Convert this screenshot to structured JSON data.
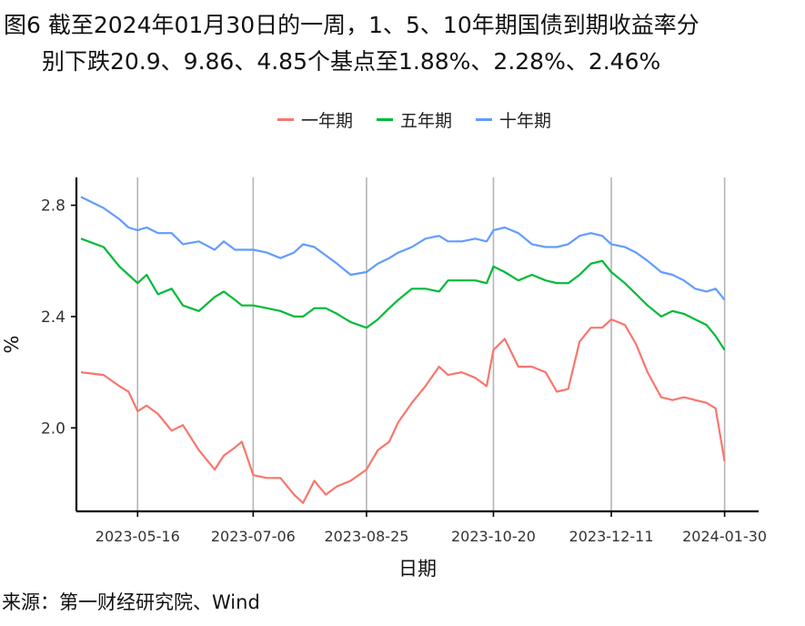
{
  "title": {
    "line1": "图6  截至2024年01月30日的一周，1、5、10年期国债到期收益率分",
    "line2": "别下跌20.9、9.86、4.85个基点至1.88%、2.28%、2.46%"
  },
  "source": "来源：第一财经研究院、Wind",
  "chart_data": {
    "type": "line",
    "xlabel": "日期",
    "ylabel": "%",
    "x_range": [
      "2023-04-19",
      "2024-02-14"
    ],
    "ylim": [
      1.7,
      2.9
    ],
    "yticks": [
      2.0,
      2.4,
      2.8
    ],
    "ytick_labels": [
      "2.0",
      "2.4",
      "2.8"
    ],
    "xticks": [
      "2023-05-16",
      "2023-07-06",
      "2023-08-25",
      "2023-10-20",
      "2023-12-11",
      "2024-01-30"
    ],
    "grid": "vertical lines at x ticks",
    "legend_position": "top",
    "series": [
      {
        "name": "一年期",
        "color": "#F8766D",
        "x": [
          "2023-04-21",
          "2023-05-01",
          "2023-05-08",
          "2023-05-12",
          "2023-05-16",
          "2023-05-20",
          "2023-05-25",
          "2023-05-31",
          "2023-06-05",
          "2023-06-12",
          "2023-06-19",
          "2023-06-23",
          "2023-06-28",
          "2023-07-01",
          "2023-07-06",
          "2023-07-12",
          "2023-07-18",
          "2023-07-24",
          "2023-07-28",
          "2023-08-02",
          "2023-08-07",
          "2023-08-12",
          "2023-08-18",
          "2023-08-25",
          "2023-08-30",
          "2023-09-04",
          "2023-09-08",
          "2023-09-14",
          "2023-09-20",
          "2023-09-26",
          "2023-09-30",
          "2023-10-06",
          "2023-10-12",
          "2023-10-17",
          "2023-10-20",
          "2023-10-25",
          "2023-10-31",
          "2023-11-06",
          "2023-11-12",
          "2023-11-17",
          "2023-11-22",
          "2023-11-27",
          "2023-12-02",
          "2023-12-07",
          "2023-12-11",
          "2023-12-17",
          "2023-12-22",
          "2023-12-27",
          "2024-01-02",
          "2024-01-07",
          "2024-01-12",
          "2024-01-17",
          "2024-01-22",
          "2024-01-26",
          "2024-01-30"
        ],
        "values": [
          2.2,
          2.19,
          2.15,
          2.13,
          2.06,
          2.08,
          2.05,
          1.99,
          2.01,
          1.92,
          1.85,
          1.9,
          1.93,
          1.95,
          1.83,
          1.82,
          1.82,
          1.76,
          1.73,
          1.81,
          1.76,
          1.79,
          1.81,
          1.85,
          1.92,
          1.95,
          2.02,
          2.09,
          2.15,
          2.22,
          2.19,
          2.2,
          2.18,
          2.15,
          2.28,
          2.32,
          2.22,
          2.22,
          2.2,
          2.13,
          2.14,
          2.31,
          2.36,
          2.36,
          2.39,
          2.37,
          2.3,
          2.2,
          2.11,
          2.1,
          2.11,
          2.1,
          2.09,
          2.07,
          1.88
        ]
      },
      {
        "name": "五年期",
        "color": "#00BA38",
        "x": [
          "2023-04-21",
          "2023-05-01",
          "2023-05-08",
          "2023-05-12",
          "2023-05-16",
          "2023-05-20",
          "2023-05-25",
          "2023-05-31",
          "2023-06-05",
          "2023-06-12",
          "2023-06-19",
          "2023-06-23",
          "2023-06-28",
          "2023-07-01",
          "2023-07-06",
          "2023-07-12",
          "2023-07-18",
          "2023-07-24",
          "2023-07-28",
          "2023-08-02",
          "2023-08-07",
          "2023-08-12",
          "2023-08-18",
          "2023-08-25",
          "2023-08-30",
          "2023-09-04",
          "2023-09-08",
          "2023-09-14",
          "2023-09-20",
          "2023-09-26",
          "2023-09-30",
          "2023-10-06",
          "2023-10-12",
          "2023-10-17",
          "2023-10-20",
          "2023-10-25",
          "2023-10-31",
          "2023-11-06",
          "2023-11-12",
          "2023-11-17",
          "2023-11-22",
          "2023-11-27",
          "2023-12-02",
          "2023-12-07",
          "2023-12-11",
          "2023-12-17",
          "2023-12-22",
          "2023-12-27",
          "2024-01-02",
          "2024-01-07",
          "2024-01-12",
          "2024-01-17",
          "2024-01-22",
          "2024-01-26",
          "2024-01-30"
        ],
        "values": [
          2.68,
          2.65,
          2.58,
          2.55,
          2.52,
          2.55,
          2.48,
          2.5,
          2.44,
          2.42,
          2.47,
          2.49,
          2.46,
          2.44,
          2.44,
          2.43,
          2.42,
          2.4,
          2.4,
          2.43,
          2.43,
          2.41,
          2.38,
          2.36,
          2.39,
          2.43,
          2.46,
          2.5,
          2.5,
          2.49,
          2.53,
          2.53,
          2.53,
          2.52,
          2.58,
          2.56,
          2.53,
          2.55,
          2.53,
          2.52,
          2.52,
          2.55,
          2.59,
          2.6,
          2.56,
          2.52,
          2.48,
          2.44,
          2.4,
          2.42,
          2.41,
          2.39,
          2.37,
          2.33,
          2.28
        ]
      },
      {
        "name": "十年期",
        "color": "#619CFF",
        "x": [
          "2023-04-21",
          "2023-05-01",
          "2023-05-08",
          "2023-05-12",
          "2023-05-16",
          "2023-05-20",
          "2023-05-25",
          "2023-05-31",
          "2023-06-05",
          "2023-06-12",
          "2023-06-19",
          "2023-06-23",
          "2023-06-28",
          "2023-07-01",
          "2023-07-06",
          "2023-07-12",
          "2023-07-18",
          "2023-07-24",
          "2023-07-28",
          "2023-08-02",
          "2023-08-07",
          "2023-08-12",
          "2023-08-18",
          "2023-08-25",
          "2023-08-30",
          "2023-09-04",
          "2023-09-08",
          "2023-09-14",
          "2023-09-20",
          "2023-09-26",
          "2023-09-30",
          "2023-10-06",
          "2023-10-12",
          "2023-10-17",
          "2023-10-20",
          "2023-10-25",
          "2023-10-31",
          "2023-11-06",
          "2023-11-12",
          "2023-11-17",
          "2023-11-22",
          "2023-11-27",
          "2023-12-02",
          "2023-12-07",
          "2023-12-11",
          "2023-12-17",
          "2023-12-22",
          "2023-12-27",
          "2024-01-02",
          "2024-01-07",
          "2024-01-12",
          "2024-01-17",
          "2024-01-22",
          "2024-01-26",
          "2024-01-30"
        ],
        "values": [
          2.83,
          2.79,
          2.75,
          2.72,
          2.71,
          2.72,
          2.7,
          2.7,
          2.66,
          2.67,
          2.64,
          2.67,
          2.64,
          2.64,
          2.64,
          2.63,
          2.61,
          2.63,
          2.66,
          2.65,
          2.62,
          2.59,
          2.55,
          2.56,
          2.59,
          2.61,
          2.63,
          2.65,
          2.68,
          2.69,
          2.67,
          2.67,
          2.68,
          2.67,
          2.71,
          2.72,
          2.7,
          2.66,
          2.65,
          2.65,
          2.66,
          2.69,
          2.7,
          2.69,
          2.66,
          2.65,
          2.63,
          2.6,
          2.56,
          2.55,
          2.53,
          2.5,
          2.49,
          2.5,
          2.46
        ]
      }
    ]
  }
}
